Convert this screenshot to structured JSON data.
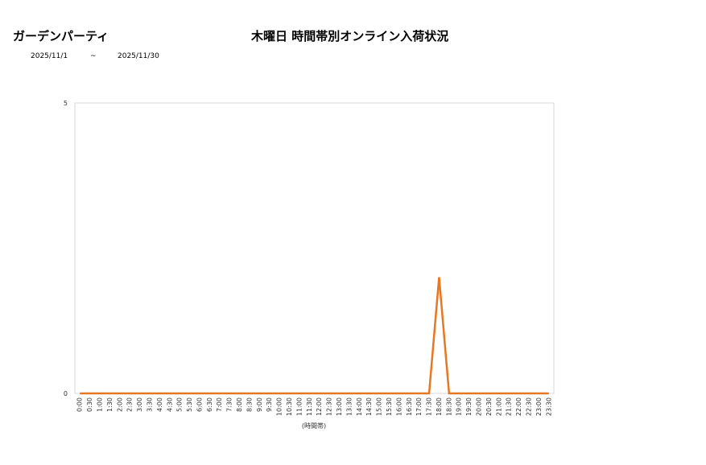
{
  "header": {
    "shop_name": "ガーデンパーティ",
    "title": "木曜日 時間帯別オンライン入荷状況",
    "date_from": "2025/11/1",
    "date_sep": "~",
    "date_to": "2025/11/30"
  },
  "chart_data": {
    "type": "line",
    "title": "木曜日 時間帯別オンライン入荷状況",
    "xlabel": "(時間帯)",
    "ylabel": "",
    "ylim": [
      0,
      5
    ],
    "yticks": [
      0,
      5
    ],
    "grid": false,
    "categories": [
      "0:00",
      "0:30",
      "1:00",
      "1:30",
      "2:00",
      "2:30",
      "3:00",
      "3:30",
      "4:00",
      "4:30",
      "5:00",
      "5:30",
      "6:00",
      "6:30",
      "7:00",
      "7:30",
      "8:00",
      "8:30",
      "9:00",
      "9:30",
      "10:00",
      "10:30",
      "11:00",
      "11:30",
      "12:00",
      "12:30",
      "13:00",
      "13:30",
      "14:00",
      "14:30",
      "15:00",
      "15:30",
      "16:00",
      "16:30",
      "17:00",
      "17:30",
      "18:00",
      "18:30",
      "19:00",
      "19:30",
      "20:00",
      "20:30",
      "21:00",
      "21:30",
      "22:00",
      "22:30",
      "23:00",
      "23:30"
    ],
    "series": [
      {
        "color": "#e87722",
        "values": [
          0,
          0,
          0,
          0,
          0,
          0,
          0,
          0,
          0,
          0,
          0,
          0,
          0,
          0,
          0,
          0,
          0,
          0,
          0,
          0,
          0,
          0,
          0,
          0,
          0,
          0,
          0,
          0,
          0,
          0,
          0,
          0,
          0,
          0,
          0,
          0,
          2,
          0,
          0,
          0,
          0,
          0,
          0,
          0,
          0,
          0,
          0,
          0
        ]
      }
    ]
  }
}
